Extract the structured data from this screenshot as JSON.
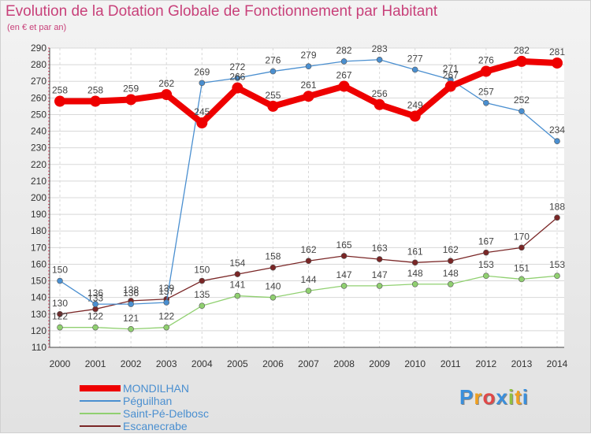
{
  "title": "Evolution de la Dotation Globale de Fonctionnement par Habitant",
  "subtitle": "(en € et par an)",
  "chart_data": {
    "type": "line",
    "title": "Evolution de la Dotation Globale de Fonctionnement par Habitant",
    "subtitle": "(en € et par an)",
    "xlabel": "",
    "ylabel": "",
    "ylim": [
      110,
      290
    ],
    "yticks": [
      110,
      120,
      130,
      140,
      150,
      160,
      170,
      180,
      190,
      200,
      210,
      220,
      230,
      240,
      250,
      260,
      270,
      280,
      290
    ],
    "categories": [
      "2000",
      "2001",
      "2002",
      "2003",
      "2004",
      "2005",
      "2006",
      "2007",
      "2008",
      "2009",
      "2010",
      "2011",
      "2012",
      "2013",
      "2014"
    ],
    "series": [
      {
        "name": "MONDILHAN",
        "color": "#ee0000",
        "values": [
          258,
          258,
          259,
          262,
          245,
          266,
          255,
          261,
          267,
          256,
          249,
          267,
          276,
          282,
          281
        ]
      },
      {
        "name": "Péguilhan",
        "color": "#4a8fd0",
        "values": [
          150,
          136,
          136,
          137,
          269,
          272,
          276,
          279,
          282,
          283,
          277,
          271,
          257,
          252,
          234
        ]
      },
      {
        "name": "Saint-Pé-Delbosc",
        "color": "#90d070",
        "values": [
          122,
          122,
          121,
          122,
          135,
          141,
          140,
          144,
          147,
          147,
          148,
          148,
          153,
          151,
          153
        ]
      },
      {
        "name": "Escanecrabe",
        "color": "#7a2626",
        "values": [
          130,
          133,
          138,
          139,
          150,
          154,
          158,
          162,
          165,
          163,
          161,
          162,
          167,
          170,
          188
        ]
      }
    ],
    "grid": true,
    "legend": "bottom-left"
  },
  "logo": {
    "letters": [
      "P",
      "r",
      "o",
      "x",
      "i",
      "t",
      "i"
    ],
    "colors": [
      "#3a8fdc",
      "#f0a020",
      "#e04848",
      "#3a8fdc",
      "#90c040",
      "#f0a020",
      "#3a8fdc"
    ]
  }
}
